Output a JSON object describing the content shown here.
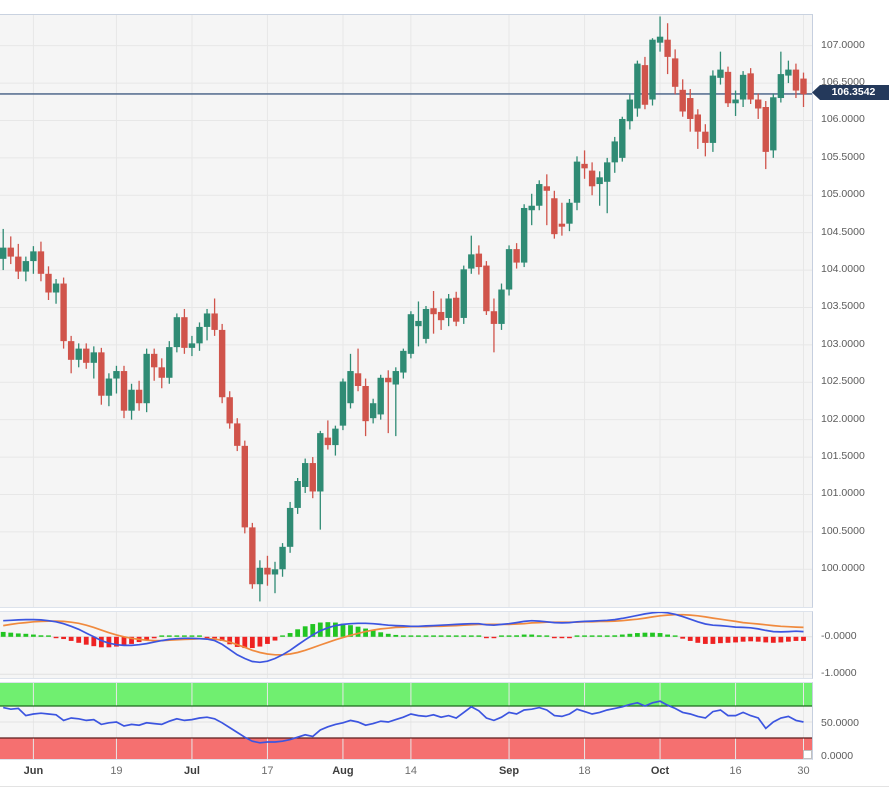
{
  "price_marker": {
    "value": "106.3542",
    "bg": "#24395b",
    "line_color": "#5c7394"
  },
  "colors": {
    "panel_bg": "#f5f5f5",
    "grid": "#e7e7e7",
    "candle_up": "#2f8b74",
    "candle_down": "#d0544b",
    "macd_line": "#3c55e0",
    "signal_line": "#f08a3e",
    "hist_up": "#22c522",
    "hist_down": "#ee2222",
    "rsi_line": "#3c55e0",
    "overbought_band": "#70ef70",
    "oversold_band": "#f57070",
    "band_edge_green": "#1d6b1d",
    "band_edge_red": "#5c1d1d"
  },
  "axes": {
    "price_labels": [
      "107.0000",
      "106.5000",
      "106.0000",
      "105.5000",
      "105.0000",
      "104.5000",
      "104.0000",
      "103.5000",
      "103.0000",
      "102.5000",
      "102.0000",
      "101.5000",
      "101.0000",
      "100.5000",
      "100.0000"
    ],
    "macd_labels": [
      {
        "text": "-0.0000",
        "value": 0
      },
      {
        "text": "-1.0000",
        "value": -1
      }
    ],
    "rsi_labels": [
      {
        "text": "50.0000",
        "value": 50
      },
      {
        "text": "0.0000",
        "value": 0
      }
    ],
    "x_labels": [
      {
        "text": "Jun",
        "index": 4,
        "bold": true
      },
      {
        "text": "19",
        "index": 15,
        "bold": false
      },
      {
        "text": "Jul",
        "index": 25,
        "bold": true
      },
      {
        "text": "17",
        "index": 35,
        "bold": false
      },
      {
        "text": "Aug",
        "index": 45,
        "bold": true
      },
      {
        "text": "14",
        "index": 54,
        "bold": false
      },
      {
        "text": "Sep",
        "index": 67,
        "bold": true
      },
      {
        "text": "18",
        "index": 77,
        "bold": false
      },
      {
        "text": "Oct",
        "index": 87,
        "bold": true
      },
      {
        "text": "16",
        "index": 97,
        "bold": false
      },
      {
        "text": "30",
        "index": 106,
        "bold": false
      }
    ]
  },
  "chart_data": {
    "type": "candlestick",
    "last_price": 106.3542,
    "price_panel": {
      "ylim": [
        99.47,
        107.41
      ],
      "tick_step": 0.5,
      "candles_ohlc": [
        [
          104.15,
          104.55,
          104.0,
          104.3
        ],
        [
          104.3,
          104.45,
          104.08,
          104.18
        ],
        [
          104.18,
          104.35,
          103.88,
          103.98
        ],
        [
          103.98,
          104.18,
          103.85,
          104.12
        ],
        [
          104.12,
          104.32,
          103.95,
          104.25
        ],
        [
          104.25,
          104.38,
          103.85,
          103.95
        ],
        [
          103.95,
          104.05,
          103.6,
          103.7
        ],
        [
          103.7,
          103.88,
          103.55,
          103.82
        ],
        [
          103.82,
          103.9,
          102.95,
          103.05
        ],
        [
          103.05,
          103.12,
          102.62,
          102.8
        ],
        [
          102.8,
          103.02,
          102.7,
          102.95
        ],
        [
          102.95,
          103.02,
          102.68,
          102.76
        ],
        [
          102.76,
          102.98,
          102.55,
          102.9
        ],
        [
          102.9,
          102.96,
          102.2,
          102.32
        ],
        [
          102.32,
          102.62,
          102.18,
          102.55
        ],
        [
          102.55,
          102.72,
          102.35,
          102.65
        ],
        [
          102.65,
          102.72,
          102.02,
          102.12
        ],
        [
          102.12,
          102.48,
          102.0,
          102.4
        ],
        [
          102.4,
          102.52,
          102.12,
          102.22
        ],
        [
          102.22,
          102.95,
          102.1,
          102.88
        ],
        [
          102.88,
          102.95,
          102.52,
          102.7
        ],
        [
          102.7,
          102.82,
          102.42,
          102.56
        ],
        [
          102.56,
          103.05,
          102.48,
          102.97
        ],
        [
          102.97,
          103.42,
          102.9,
          103.37
        ],
        [
          103.37,
          103.48,
          102.88,
          102.96
        ],
        [
          102.96,
          103.12,
          102.85,
          103.02
        ],
        [
          103.02,
          103.3,
          102.92,
          103.24
        ],
        [
          103.24,
          103.48,
          103.06,
          103.42
        ],
        [
          103.42,
          103.62,
          103.12,
          103.2
        ],
        [
          103.2,
          103.28,
          102.22,
          102.3
        ],
        [
          102.3,
          102.38,
          101.88,
          101.95
        ],
        [
          101.95,
          102.02,
          101.58,
          101.65
        ],
        [
          101.65,
          101.72,
          100.48,
          100.56
        ],
        [
          100.56,
          100.62,
          99.74,
          99.8
        ],
        [
          99.8,
          100.12,
          99.57,
          100.02
        ],
        [
          100.02,
          100.18,
          99.78,
          99.93
        ],
        [
          99.93,
          100.1,
          99.68,
          100.0
        ],
        [
          100.0,
          100.35,
          99.9,
          100.3
        ],
        [
          100.3,
          100.9,
          100.22,
          100.82
        ],
        [
          100.82,
          101.22,
          100.74,
          101.18
        ],
        [
          101.1,
          101.48,
          101.02,
          101.42
        ],
        [
          101.42,
          101.5,
          100.95,
          101.04
        ],
        [
          101.04,
          101.85,
          100.53,
          101.82
        ],
        [
          101.76,
          101.99,
          101.6,
          101.66
        ],
        [
          101.66,
          101.92,
          101.52,
          101.88
        ],
        [
          101.92,
          102.55,
          101.86,
          102.51
        ],
        [
          102.22,
          102.88,
          102.15,
          102.65
        ],
        [
          102.62,
          102.95,
          102.38,
          102.45
        ],
        [
          102.45,
          102.55,
          101.78,
          101.98
        ],
        [
          102.02,
          102.28,
          101.95,
          102.22
        ],
        [
          102.07,
          102.6,
          102.0,
          102.56
        ],
        [
          102.56,
          102.66,
          101.82,
          102.5
        ],
        [
          102.47,
          102.7,
          101.78,
          102.65
        ],
        [
          102.63,
          102.95,
          102.55,
          102.92
        ],
        [
          102.88,
          103.45,
          102.82,
          103.41
        ],
        [
          103.25,
          103.58,
          102.98,
          103.32
        ],
        [
          103.08,
          103.52,
          103.02,
          103.48
        ],
        [
          103.49,
          103.72,
          103.15,
          103.41
        ],
        [
          103.44,
          103.62,
          103.2,
          103.33
        ],
        [
          103.36,
          103.68,
          103.25,
          103.62
        ],
        [
          103.63,
          103.71,
          103.25,
          103.31
        ],
        [
          103.36,
          104.06,
          103.28,
          104.01
        ],
        [
          104.02,
          104.46,
          103.95,
          104.21
        ],
        [
          104.22,
          104.33,
          103.94,
          104.04
        ],
        [
          104.06,
          104.12,
          103.4,
          103.45
        ],
        [
          103.45,
          103.62,
          102.9,
          103.28
        ],
        [
          103.28,
          103.82,
          103.2,
          103.74
        ],
        [
          103.74,
          104.33,
          103.66,
          104.28
        ],
        [
          104.28,
          104.36,
          104.02,
          104.1
        ],
        [
          104.1,
          104.88,
          104.04,
          104.83
        ],
        [
          104.8,
          105.02,
          104.6,
          104.86
        ],
        [
          104.86,
          105.2,
          104.8,
          105.15
        ],
        [
          105.12,
          105.28,
          104.6,
          105.06
        ],
        [
          104.96,
          105.06,
          104.42,
          104.48
        ],
        [
          104.62,
          104.9,
          104.46,
          104.58
        ],
        [
          104.62,
          104.95,
          104.52,
          104.9
        ],
        [
          104.9,
          105.52,
          104.8,
          105.45
        ],
        [
          105.42,
          105.6,
          105.22,
          105.36
        ],
        [
          105.33,
          105.44,
          105.0,
          105.12
        ],
        [
          105.15,
          105.32,
          104.86,
          105.24
        ],
        [
          105.18,
          105.5,
          104.76,
          105.44
        ],
        [
          105.44,
          105.78,
          105.3,
          105.72
        ],
        [
          105.5,
          106.05,
          105.45,
          106.02
        ],
        [
          105.99,
          106.35,
          105.88,
          106.28
        ],
        [
          106.16,
          106.8,
          106.05,
          106.76
        ],
        [
          106.74,
          106.85,
          106.15,
          106.21
        ],
        [
          106.28,
          107.1,
          106.2,
          107.08
        ],
        [
          107.04,
          107.39,
          106.92,
          107.12
        ],
        [
          107.08,
          107.3,
          106.62,
          106.85
        ],
        [
          106.83,
          106.95,
          106.35,
          106.45
        ],
        [
          106.41,
          106.55,
          106.05,
          106.12
        ],
        [
          106.3,
          106.42,
          105.85,
          106.02
        ],
        [
          106.08,
          106.15,
          105.62,
          105.85
        ],
        [
          105.85,
          105.95,
          105.52,
          105.7
        ],
        [
          105.7,
          106.67,
          105.58,
          106.6
        ],
        [
          106.57,
          106.92,
          106.48,
          106.68
        ],
        [
          106.65,
          106.72,
          106.18,
          106.23
        ],
        [
          106.23,
          106.4,
          106.06,
          106.28
        ],
        [
          106.28,
          106.66,
          106.18,
          106.61
        ],
        [
          106.63,
          106.7,
          106.22,
          106.28
        ],
        [
          106.28,
          106.36,
          106.02,
          106.16
        ],
        [
          106.18,
          106.26,
          105.35,
          105.58
        ],
        [
          105.6,
          106.36,
          105.5,
          106.31
        ],
        [
          106.3,
          106.92,
          106.24,
          106.62
        ],
        [
          106.6,
          106.8,
          106.5,
          106.68
        ],
        [
          106.68,
          106.76,
          106.3,
          106.4
        ],
        [
          106.56,
          106.64,
          106.18,
          106.35
        ]
      ]
    },
    "macd_panel": {
      "ylim": [
        -1.15,
        0.66
      ],
      "ticks": [
        0,
        -1
      ],
      "macd": [
        0.43,
        0.44,
        0.45,
        0.46,
        0.46,
        0.45,
        0.43,
        0.4,
        0.35,
        0.28,
        0.2,
        0.1,
        0.0,
        -0.1,
        -0.17,
        -0.21,
        -0.23,
        -0.23,
        -0.21,
        -0.18,
        -0.14,
        -0.1,
        -0.07,
        -0.05,
        -0.04,
        -0.04,
        -0.05,
        -0.06,
        -0.1,
        -0.2,
        -0.34,
        -0.48,
        -0.58,
        -0.66,
        -0.68,
        -0.65,
        -0.58,
        -0.48,
        -0.36,
        -0.22,
        -0.08,
        0.05,
        0.16,
        0.24,
        0.3,
        0.33,
        0.35,
        0.36,
        0.36,
        0.35,
        0.33,
        0.31,
        0.3,
        0.29,
        0.28,
        0.28,
        0.29,
        0.3,
        0.31,
        0.32,
        0.33,
        0.34,
        0.35,
        0.35,
        0.32,
        0.31,
        0.33,
        0.35,
        0.38,
        0.41,
        0.43,
        0.42,
        0.4,
        0.38,
        0.37,
        0.38,
        0.4,
        0.41,
        0.42,
        0.43,
        0.44,
        0.46,
        0.49,
        0.53,
        0.57,
        0.61,
        0.64,
        0.66,
        0.64,
        0.6,
        0.54,
        0.47,
        0.4,
        0.34,
        0.31,
        0.3,
        0.28,
        0.26,
        0.25,
        0.24,
        0.21,
        0.17,
        0.14,
        0.13,
        0.14,
        0.15,
        0.14
      ],
      "signal": [
        0.3,
        0.33,
        0.36,
        0.38,
        0.4,
        0.41,
        0.42,
        0.42,
        0.41,
        0.39,
        0.36,
        0.31,
        0.25,
        0.18,
        0.11,
        0.05,
        0.0,
        -0.04,
        -0.07,
        -0.09,
        -0.1,
        -0.1,
        -0.09,
        -0.08,
        -0.07,
        -0.06,
        -0.05,
        -0.05,
        -0.06,
        -0.09,
        -0.14,
        -0.21,
        -0.28,
        -0.36,
        -0.42,
        -0.46,
        -0.48,
        -0.48,
        -0.46,
        -0.42,
        -0.36,
        -0.29,
        -0.22,
        -0.15,
        -0.08,
        -0.02,
        0.04,
        0.09,
        0.14,
        0.18,
        0.21,
        0.23,
        0.25,
        0.26,
        0.27,
        0.27,
        0.27,
        0.28,
        0.28,
        0.29,
        0.3,
        0.31,
        0.32,
        0.33,
        0.33,
        0.33,
        0.33,
        0.33,
        0.34,
        0.35,
        0.37,
        0.38,
        0.39,
        0.39,
        0.39,
        0.39,
        0.39,
        0.4,
        0.4,
        0.41,
        0.41,
        0.42,
        0.43,
        0.45,
        0.47,
        0.5,
        0.53,
        0.56,
        0.58,
        0.59,
        0.59,
        0.58,
        0.56,
        0.53,
        0.5,
        0.47,
        0.44,
        0.41,
        0.38,
        0.36,
        0.34,
        0.32,
        0.3,
        0.28,
        0.27,
        0.26,
        0.25
      ]
    },
    "rsi_panel": {
      "ylim": [
        -2,
        92
      ],
      "overbought_level": 70,
      "oversold_level": 30,
      "values": [
        68,
        66,
        67,
        58,
        60,
        61,
        60,
        59,
        52,
        55,
        54,
        52,
        53,
        47,
        49,
        50,
        45,
        47,
        46,
        49,
        48,
        47,
        51,
        54,
        52,
        53,
        55,
        56,
        54,
        49,
        43,
        37,
        31,
        26,
        24,
        25,
        25,
        26,
        28,
        31,
        34,
        32,
        40,
        44,
        47,
        49,
        52,
        50,
        46,
        48,
        51,
        50,
        53,
        56,
        60,
        58,
        57,
        59,
        56,
        58,
        55,
        62,
        69,
        64,
        55,
        52,
        56,
        62,
        60,
        65,
        66,
        68,
        65,
        58,
        57,
        60,
        66,
        63,
        60,
        62,
        65,
        67,
        69,
        72,
        74,
        70,
        74,
        76,
        71,
        67,
        62,
        60,
        57,
        55,
        63,
        65,
        58,
        58,
        62,
        58,
        55,
        42,
        50,
        55,
        57,
        52,
        50
      ]
    }
  }
}
